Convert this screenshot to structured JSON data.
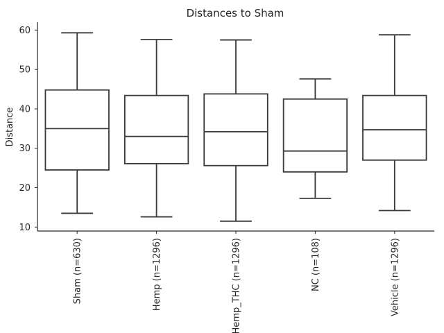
{
  "chart_data": {
    "type": "box",
    "title": "Distances to Sham",
    "xlabel": "",
    "ylabel": "Distance",
    "ylim": [
      9,
      62
    ],
    "yticks": [
      10,
      20,
      30,
      40,
      50,
      60
    ],
    "grid": false,
    "legend": "none",
    "colors": {
      "box_stroke": "#3a3a3a",
      "box_fill": "#ffffff",
      "axis": "#262626"
    },
    "categories": [
      "Sham (n=630)",
      "Hemp (n=1296)",
      "Hemp_THC (n=1296)",
      "NC (n=108)",
      "Vehicle (n=1296)"
    ],
    "boxes": [
      {
        "whisker_low": 13.5,
        "q1": 24.5,
        "median": 35.0,
        "q3": 44.8,
        "whisker_high": 59.3
      },
      {
        "whisker_low": 12.6,
        "q1": 26.1,
        "median": 33.0,
        "q3": 43.4,
        "whisker_high": 57.6
      },
      {
        "whisker_low": 11.5,
        "q1": 25.6,
        "median": 34.2,
        "q3": 43.8,
        "whisker_high": 57.5
      },
      {
        "whisker_low": 17.3,
        "q1": 24.0,
        "median": 29.3,
        "q3": 42.5,
        "whisker_high": 47.6
      },
      {
        "whisker_low": 14.2,
        "q1": 27.0,
        "median": 34.7,
        "q3": 43.4,
        "whisker_high": 58.8
      }
    ]
  }
}
